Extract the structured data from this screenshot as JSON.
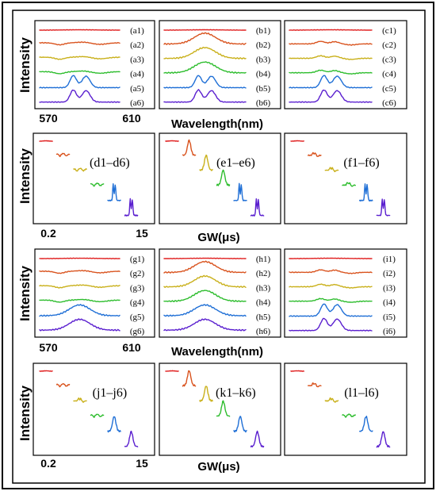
{
  "chart_data": [
    {
      "type": "line",
      "title": "",
      "xlabel": "Wavelength(nm)",
      "ylabel": "Intensity",
      "x_ticks": [
        "570",
        "610"
      ],
      "xlim": [
        570,
        610
      ],
      "grid": false,
      "legend": "none",
      "panels": [
        {
          "id": "a",
          "traces": [
            {
              "label": "(a1)",
              "shape": "flat"
            },
            {
              "label": "(a2)",
              "shape": "dip"
            },
            {
              "label": "(a3)",
              "shape": "dip"
            },
            {
              "label": "(a4)",
              "shape": "dip"
            },
            {
              "label": "(a5)",
              "shape": "double"
            },
            {
              "label": "(a6)",
              "shape": "double"
            }
          ]
        },
        {
          "id": "b",
          "traces": [
            {
              "label": "(b1)",
              "shape": "flat"
            },
            {
              "label": "(b2)",
              "shape": "hump"
            },
            {
              "label": "(b3)",
              "shape": "hump"
            },
            {
              "label": "(b4)",
              "shape": "hump"
            },
            {
              "label": "(b5)",
              "shape": "double"
            },
            {
              "label": "(b6)",
              "shape": "double"
            }
          ]
        },
        {
          "id": "c",
          "traces": [
            {
              "label": "(c1)",
              "shape": "flat"
            },
            {
              "label": "(c2)",
              "shape": "wiggle"
            },
            {
              "label": "(c3)",
              "shape": "wiggle"
            },
            {
              "label": "(c4)",
              "shape": "wiggle"
            },
            {
              "label": "(c5)",
              "shape": "double"
            },
            {
              "label": "(c6)",
              "shape": "double"
            }
          ]
        }
      ]
    },
    {
      "type": "line",
      "title": "",
      "xlabel": "GW(μs)",
      "ylabel": "Intensity",
      "x_ticks": [
        "0.2",
        "15"
      ],
      "xlim": [
        0.2,
        15
      ],
      "grid": false,
      "legend": "none",
      "panels": [
        {
          "id": "d",
          "label": "(d1–d6)",
          "shapes": [
            "flat",
            "dip",
            "dip",
            "dip",
            "double",
            "double"
          ]
        },
        {
          "id": "e",
          "label": "(e1–e6)",
          "shapes": [
            "flat",
            "hump",
            "hump",
            "hump",
            "double",
            "double"
          ]
        },
        {
          "id": "f",
          "label": "(f1–f6)",
          "shapes": [
            "flat",
            "wiggle",
            "wiggle",
            "wiggle",
            "double",
            "double"
          ]
        }
      ]
    },
    {
      "type": "line",
      "title": "",
      "xlabel": "Wavelength(nm)",
      "ylabel": "Intensity",
      "x_ticks": [
        "570",
        "610"
      ],
      "xlim": [
        570,
        610
      ],
      "grid": false,
      "legend": "none",
      "panels": [
        {
          "id": "g",
          "traces": [
            {
              "label": "(g1)",
              "shape": "flat"
            },
            {
              "label": "(g2)",
              "shape": "dip"
            },
            {
              "label": "(g3)",
              "shape": "dip"
            },
            {
              "label": "(g4)",
              "shape": "dip"
            },
            {
              "label": "(g5)",
              "shape": "hump"
            },
            {
              "label": "(g6)",
              "shape": "hump"
            }
          ]
        },
        {
          "id": "h",
          "traces": [
            {
              "label": "(h1)",
              "shape": "flat"
            },
            {
              "label": "(h2)",
              "shape": "hump"
            },
            {
              "label": "(h3)",
              "shape": "hump"
            },
            {
              "label": "(h4)",
              "shape": "hump"
            },
            {
              "label": "(h5)",
              "shape": "hump"
            },
            {
              "label": "(h6)",
              "shape": "hump"
            }
          ]
        },
        {
          "id": "i",
          "traces": [
            {
              "label": "(i1)",
              "shape": "flat"
            },
            {
              "label": "(i2)",
              "shape": "wiggle"
            },
            {
              "label": "(i3)",
              "shape": "wiggle"
            },
            {
              "label": "(i4)",
              "shape": "wiggle"
            },
            {
              "label": "(i5)",
              "shape": "double"
            },
            {
              "label": "(i6)",
              "shape": "double"
            }
          ]
        }
      ]
    },
    {
      "type": "line",
      "title": "",
      "xlabel": "GW(μs)",
      "ylabel": "Intensity",
      "x_ticks": [
        "0.2",
        "15"
      ],
      "xlim": [
        0.2,
        15
      ],
      "grid": false,
      "legend": "none",
      "panels": [
        {
          "id": "j",
          "label": "(j1–j6)",
          "shapes": [
            "flat",
            "dip",
            "wiggle",
            "dip",
            "hump",
            "hump"
          ]
        },
        {
          "id": "k",
          "label": "(k1–k6)",
          "shapes": [
            "flat",
            "hump",
            "hump",
            "hump",
            "hump",
            "hump"
          ]
        },
        {
          "id": "l",
          "label": "(l1–l6)",
          "shapes": [
            "flat",
            "wiggle",
            "wiggle",
            "dip",
            "hump",
            "hump"
          ]
        }
      ]
    }
  ],
  "series_colors": [
    "#e02020",
    "#d9531e",
    "#c9b01a",
    "#2ebd2e",
    "#1f6fd6",
    "#5a1fcf"
  ]
}
